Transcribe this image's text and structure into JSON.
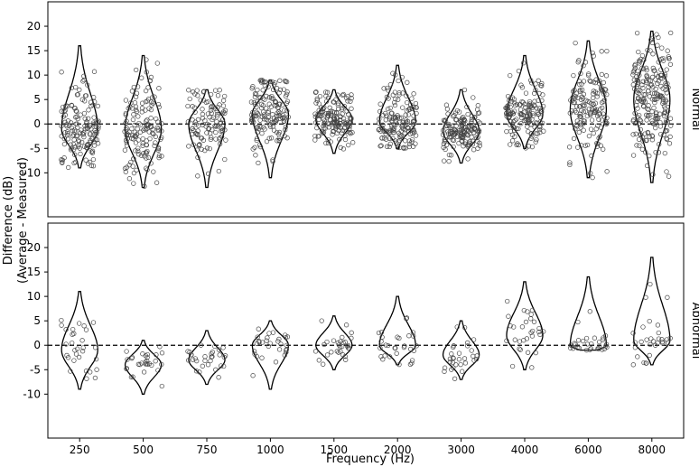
{
  "chart_data": {
    "type": "violin",
    "xlabel": "Frequency (Hz)",
    "ylabel_line1": "Difference (dB)",
    "ylabel_line2": "(Average - Measured)",
    "categories": [
      "250",
      "500",
      "750",
      "1000",
      "1500",
      "2000",
      "3000",
      "4000",
      "6000",
      "8000"
    ],
    "ylim": [
      -19,
      25
    ],
    "yticks": [
      -10,
      -5,
      0,
      5,
      10,
      15,
      20
    ],
    "reference_line": 0,
    "point_style": "open circles, jittered",
    "panels": [
      {
        "label": "Normal",
        "distributions": [
          {
            "category": "250",
            "min": -9,
            "max": 16,
            "median": 0,
            "mode": -1,
            "n": 150
          },
          {
            "category": "500",
            "min": -13,
            "max": 14,
            "median": -2,
            "mode": -1,
            "n": 150
          },
          {
            "category": "750",
            "min": -13,
            "max": 7,
            "median": 0,
            "mode": 0,
            "n": 110
          },
          {
            "category": "1000",
            "min": -11,
            "max": 9,
            "median": 2,
            "mode": 2,
            "n": 150
          },
          {
            "category": "1500",
            "min": -6,
            "max": 7,
            "median": 1,
            "mode": 1,
            "n": 150
          },
          {
            "category": "2000",
            "min": -5,
            "max": 12,
            "median": 1,
            "mode": 0.5,
            "n": 150
          },
          {
            "category": "3000",
            "min": -8,
            "max": 7,
            "median": -2,
            "mode": -1.5,
            "n": 150
          },
          {
            "category": "4000",
            "min": -5,
            "max": 14,
            "median": 2,
            "mode": 2,
            "n": 150
          },
          {
            "category": "6000",
            "min": -11,
            "max": 17,
            "median": 3,
            "mode": 3,
            "n": 150
          },
          {
            "category": "8000",
            "min": -12,
            "max": 19,
            "median": 4,
            "mode": 5,
            "n": 220
          }
        ]
      },
      {
        "label": "Abnormal",
        "distributions": [
          {
            "category": "250",
            "min": -9,
            "max": 11,
            "median": -1,
            "mode": -1,
            "n": 30
          },
          {
            "category": "500",
            "min": -10,
            "max": 1,
            "median": -4,
            "mode": -4,
            "n": 30
          },
          {
            "category": "750",
            "min": -8,
            "max": 3,
            "median": -3,
            "mode": -3,
            "n": 30
          },
          {
            "category": "1000",
            "min": -9,
            "max": 5,
            "median": 0,
            "mode": 0,
            "n": 30
          },
          {
            "category": "1500",
            "min": -5,
            "max": 6,
            "median": 0,
            "mode": 0,
            "n": 30
          },
          {
            "category": "2000",
            "min": -4,
            "max": 10,
            "median": 0,
            "mode": 0,
            "n": 30
          },
          {
            "category": "3000",
            "min": -7,
            "max": 5,
            "median": -2,
            "mode": -2,
            "n": 30
          },
          {
            "category": "4000",
            "min": -5,
            "max": 13,
            "median": 2,
            "mode": 2,
            "n": 30
          },
          {
            "category": "6000",
            "min": -1,
            "max": 14,
            "median": 2,
            "mode": 0,
            "n": 30
          },
          {
            "category": "8000",
            "min": -4,
            "max": 18,
            "median": 2,
            "mode": 1,
            "n": 30
          }
        ]
      }
    ],
    "colors": {
      "line": "#000000",
      "background": "#ffffff",
      "points": "#555555"
    }
  }
}
